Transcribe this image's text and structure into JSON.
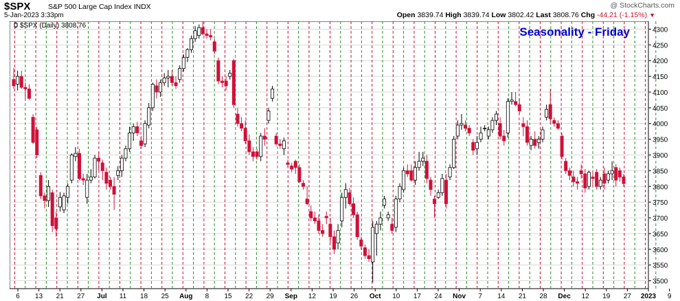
{
  "header": {
    "symbol": "$SPX",
    "description": "S&P 500 Large Cap Index INDX",
    "watermark": "@ StockCharts.com",
    "datetime": "5-Jan-2023 3:33pm",
    "open_label": "Open",
    "open": "3839.74",
    "high_label": "High",
    "high": "3839.74",
    "low_label": "Low",
    "low": "3802.42",
    "last_label": "Last",
    "last": "3808.76",
    "chg_label": "Chg",
    "chg": "-44.21 (-1.15%)",
    "chg_icon": "down-triangle-icon"
  },
  "legend": {
    "text": "$SPX (Daily) 3808.76",
    "icon": "candlestick-icon"
  },
  "colors": {
    "up": "#ffffff",
    "down": "#d0103a",
    "outline": "#000000",
    "friday_line": "#c8102e",
    "week_line": "#2e8b2e",
    "title": "#0000cc"
  },
  "chart_data": {
    "type": "candlestick",
    "title": "Seasonality - Friday",
    "ylim": [
      3475,
      4325
    ],
    "y_ticks": [
      3500,
      3550,
      3600,
      3650,
      3700,
      3750,
      3800,
      3850,
      3900,
      3950,
      4000,
      4050,
      4100,
      4150,
      4200,
      4250,
      4300
    ],
    "y_axis_side": "right",
    "x_labels": [
      {
        "label": "6",
        "bold": false
      },
      {
        "label": "13",
        "bold": false
      },
      {
        "label": "21",
        "bold": false
      },
      {
        "label": "27",
        "bold": false
      },
      {
        "label": "Jul",
        "bold": true
      },
      {
        "label": "11",
        "bold": false
      },
      {
        "label": "18",
        "bold": false
      },
      {
        "label": "25",
        "bold": false
      },
      {
        "label": "Aug",
        "bold": true
      },
      {
        "label": "8",
        "bold": false
      },
      {
        "label": "15",
        "bold": false
      },
      {
        "label": "22",
        "bold": false
      },
      {
        "label": "29",
        "bold": false
      },
      {
        "label": "Sep",
        "bold": true
      },
      {
        "label": "12",
        "bold": false
      },
      {
        "label": "19",
        "bold": false
      },
      {
        "label": "26",
        "bold": false
      },
      {
        "label": "Oct",
        "bold": true
      },
      {
        "label": "10",
        "bold": false
      },
      {
        "label": "17",
        "bold": false
      },
      {
        "label": "24",
        "bold": false
      },
      {
        "label": "Nov",
        "bold": true
      },
      {
        "label": "7",
        "bold": false
      },
      {
        "label": "14",
        "bold": false
      },
      {
        "label": "21",
        "bold": false
      },
      {
        "label": "28",
        "bold": false
      },
      {
        "label": "Dec",
        "bold": true
      },
      {
        "label": "12",
        "bold": false
      },
      {
        "label": "19",
        "bold": false
      },
      {
        "label": "27",
        "bold": false
      },
      {
        "label": "2023",
        "bold": true
      },
      {
        "label": "9",
        "bold": false
      }
    ],
    "grid": true,
    "legend": "top-left",
    "annotations": [
      "Friday (red dashed vertical)",
      "week start (green dashed vertical)"
    ],
    "candles": [
      {
        "o": 4140,
        "h": 4177,
        "l": 4110,
        "c": 4120
      },
      {
        "o": 4125,
        "h": 4168,
        "l": 4105,
        "c": 4150
      },
      {
        "o": 4150,
        "h": 4168,
        "l": 4110,
        "c": 4115
      },
      {
        "o": 4115,
        "h": 4130,
        "l": 4077,
        "c": 4110
      },
      {
        "o": 4110,
        "h": 4125,
        "l": 4075,
        "c": 4080
      },
      {
        "o": 4020,
        "h": 4030,
        "l": 3935,
        "c": 3940
      },
      {
        "o": 3980,
        "h": 3990,
        "l": 3890,
        "c": 3900
      },
      {
        "o": 3835,
        "h": 3845,
        "l": 3760,
        "c": 3770
      },
      {
        "o": 3770,
        "h": 3780,
        "l": 3730,
        "c": 3755
      },
      {
        "o": 3755,
        "h": 3820,
        "l": 3735,
        "c": 3800
      },
      {
        "o": 3780,
        "h": 3790,
        "l": 3655,
        "c": 3675
      },
      {
        "o": 3700,
        "h": 3720,
        "l": 3640,
        "c": 3665
      },
      {
        "o": 3735,
        "h": 3782,
        "l": 3720,
        "c": 3765
      },
      {
        "o": 3725,
        "h": 3780,
        "l": 3715,
        "c": 3770
      },
      {
        "o": 3765,
        "h": 3810,
        "l": 3745,
        "c": 3800
      },
      {
        "o": 3820,
        "h": 3905,
        "l": 3810,
        "c": 3900
      },
      {
        "o": 3895,
        "h": 3925,
        "l": 3880,
        "c": 3905
      },
      {
        "o": 3905,
        "h": 3920,
        "l": 3820,
        "c": 3825
      },
      {
        "o": 3825,
        "h": 3840,
        "l": 3805,
        "c": 3820
      },
      {
        "o": 3765,
        "h": 3840,
        "l": 3745,
        "c": 3820
      },
      {
        "o": 3820,
        "h": 3855,
        "l": 3810,
        "c": 3830
      },
      {
        "o": 3830,
        "h": 3900,
        "l": 3825,
        "c": 3890
      },
      {
        "o": 3890,
        "h": 3910,
        "l": 3850,
        "c": 3880
      },
      {
        "o": 3875,
        "h": 3885,
        "l": 3820,
        "c": 3850
      },
      {
        "o": 3845,
        "h": 3860,
        "l": 3790,
        "c": 3810
      },
      {
        "o": 3820,
        "h": 3830,
        "l": 3790,
        "c": 3800
      },
      {
        "o": 3800,
        "h": 3830,
        "l": 3725,
        "c": 3775
      },
      {
        "o": 3835,
        "h": 3865,
        "l": 3820,
        "c": 3850
      },
      {
        "o": 3850,
        "h": 3900,
        "l": 3830,
        "c": 3890
      },
      {
        "o": 3890,
        "h": 3930,
        "l": 3880,
        "c": 3920
      },
      {
        "o": 3920,
        "h": 3990,
        "l": 3910,
        "c": 3970
      },
      {
        "o": 3970,
        "h": 4000,
        "l": 3945,
        "c": 3990
      },
      {
        "o": 3990,
        "h": 4005,
        "l": 3960,
        "c": 3970
      },
      {
        "o": 3945,
        "h": 3960,
        "l": 3920,
        "c": 3930
      },
      {
        "o": 3935,
        "h": 4010,
        "l": 3925,
        "c": 4000
      },
      {
        "o": 3995,
        "h": 4065,
        "l": 3985,
        "c": 4050
      },
      {
        "o": 4050,
        "h": 4130,
        "l": 4040,
        "c": 4125
      },
      {
        "o": 4120,
        "h": 4140,
        "l": 4080,
        "c": 4100
      },
      {
        "o": 4100,
        "h": 4140,
        "l": 4085,
        "c": 4130
      },
      {
        "o": 4130,
        "h": 4160,
        "l": 4120,
        "c": 4145
      },
      {
        "o": 4145,
        "h": 4170,
        "l": 4115,
        "c": 4150
      },
      {
        "o": 4150,
        "h": 4170,
        "l": 4120,
        "c": 4130
      },
      {
        "o": 4130,
        "h": 4150,
        "l": 4110,
        "c": 4120
      },
      {
        "o": 4140,
        "h": 4185,
        "l": 4130,
        "c": 4175
      },
      {
        "o": 4175,
        "h": 4220,
        "l": 4165,
        "c": 4210
      },
      {
        "o": 4210,
        "h": 4240,
        "l": 4195,
        "c": 4235
      },
      {
        "o": 4235,
        "h": 4280,
        "l": 4225,
        "c": 4270
      },
      {
        "o": 4270,
        "h": 4310,
        "l": 4260,
        "c": 4295
      },
      {
        "o": 4280,
        "h": 4315,
        "l": 4270,
        "c": 4305
      },
      {
        "o": 4305,
        "h": 4325,
        "l": 4280,
        "c": 4285
      },
      {
        "o": 4285,
        "h": 4300,
        "l": 4270,
        "c": 4280
      },
      {
        "o": 4280,
        "h": 4300,
        "l": 4265,
        "c": 4275
      },
      {
        "o": 4260,
        "h": 4270,
        "l": 4220,
        "c": 4230
      },
      {
        "o": 4200,
        "h": 4210,
        "l": 4125,
        "c": 4135
      },
      {
        "o": 4135,
        "h": 4150,
        "l": 4115,
        "c": 4130
      },
      {
        "o": 4135,
        "h": 4150,
        "l": 4105,
        "c": 4120
      },
      {
        "o": 4150,
        "h": 4170,
        "l": 4140,
        "c": 4160
      },
      {
        "o": 4200,
        "h": 4205,
        "l": 4050,
        "c": 4060
      },
      {
        "o": 4030,
        "h": 4050,
        "l": 3990,
        "c": 4000
      },
      {
        "o": 4000,
        "h": 4020,
        "l": 3975,
        "c": 3985
      },
      {
        "o": 3985,
        "h": 4010,
        "l": 3935,
        "c": 3945
      },
      {
        "o": 3945,
        "h": 3965,
        "l": 3900,
        "c": 3910
      },
      {
        "o": 3910,
        "h": 3925,
        "l": 3880,
        "c": 3895
      },
      {
        "o": 3910,
        "h": 3920,
        "l": 3885,
        "c": 3895
      },
      {
        "o": 3895,
        "h": 3970,
        "l": 3880,
        "c": 3960
      },
      {
        "o": 3960,
        "h": 3985,
        "l": 3930,
        "c": 3950
      },
      {
        "o": 4010,
        "h": 4050,
        "l": 4000,
        "c": 4040
      },
      {
        "o": 4080,
        "h": 4120,
        "l": 4070,
        "c": 4110
      },
      {
        "o": 3960,
        "h": 3970,
        "l": 3930,
        "c": 3935
      },
      {
        "o": 3935,
        "h": 3950,
        "l": 3920,
        "c": 3930
      },
      {
        "o": 3920,
        "h": 3955,
        "l": 3900,
        "c": 3945
      },
      {
        "o": 3875,
        "h": 3885,
        "l": 3860,
        "c": 3870
      },
      {
        "o": 3865,
        "h": 3875,
        "l": 3845,
        "c": 3855
      },
      {
        "o": 3880,
        "h": 3885,
        "l": 3840,
        "c": 3860
      },
      {
        "o": 3860,
        "h": 3870,
        "l": 3810,
        "c": 3815
      },
      {
        "o": 3810,
        "h": 3820,
        "l": 3790,
        "c": 3800
      },
      {
        "o": 3760,
        "h": 3800,
        "l": 3740,
        "c": 3745
      },
      {
        "o": 3720,
        "h": 3740,
        "l": 3690,
        "c": 3700
      },
      {
        "o": 3700,
        "h": 3720,
        "l": 3680,
        "c": 3690
      },
      {
        "o": 3690,
        "h": 3710,
        "l": 3650,
        "c": 3660
      },
      {
        "o": 3660,
        "h": 3680,
        "l": 3640,
        "c": 3650
      },
      {
        "o": 3705,
        "h": 3720,
        "l": 3680,
        "c": 3700
      },
      {
        "o": 3680,
        "h": 3700,
        "l": 3620,
        "c": 3640
      },
      {
        "o": 3640,
        "h": 3660,
        "l": 3585,
        "c": 3600
      },
      {
        "o": 3620,
        "h": 3680,
        "l": 3600,
        "c": 3660
      },
      {
        "o": 3690,
        "h": 3780,
        "l": 3670,
        "c": 3765
      },
      {
        "o": 3765,
        "h": 3810,
        "l": 3730,
        "c": 3790
      },
      {
        "o": 3780,
        "h": 3795,
        "l": 3740,
        "c": 3745
      },
      {
        "o": 3745,
        "h": 3765,
        "l": 3700,
        "c": 3710
      },
      {
        "o": 3710,
        "h": 3720,
        "l": 3630,
        "c": 3640
      },
      {
        "o": 3630,
        "h": 3640,
        "l": 3600,
        "c": 3610
      },
      {
        "o": 3605,
        "h": 3615,
        "l": 3570,
        "c": 3580
      },
      {
        "o": 3580,
        "h": 3600,
        "l": 3560,
        "c": 3570
      },
      {
        "o": 3560,
        "h": 3690,
        "l": 3495,
        "c": 3670
      },
      {
        "o": 3650,
        "h": 3690,
        "l": 3580,
        "c": 3680
      },
      {
        "o": 3680,
        "h": 3720,
        "l": 3660,
        "c": 3700
      },
      {
        "o": 3740,
        "h": 3770,
        "l": 3730,
        "c": 3760
      },
      {
        "o": 3700,
        "h": 3720,
        "l": 3690,
        "c": 3710
      },
      {
        "o": 3680,
        "h": 3700,
        "l": 3650,
        "c": 3660
      },
      {
        "o": 3670,
        "h": 3770,
        "l": 3655,
        "c": 3760
      },
      {
        "o": 3760,
        "h": 3810,
        "l": 3750,
        "c": 3800
      },
      {
        "o": 3790,
        "h": 3860,
        "l": 3780,
        "c": 3850
      },
      {
        "o": 3850,
        "h": 3870,
        "l": 3830,
        "c": 3840
      },
      {
        "o": 3850,
        "h": 3870,
        "l": 3815,
        "c": 3820
      },
      {
        "o": 3820,
        "h": 3880,
        "l": 3805,
        "c": 3860
      },
      {
        "o": 3860,
        "h": 3910,
        "l": 3850,
        "c": 3880
      },
      {
        "o": 3880,
        "h": 3910,
        "l": 3865,
        "c": 3890
      },
      {
        "o": 3880,
        "h": 3900,
        "l": 3810,
        "c": 3825
      },
      {
        "o": 3820,
        "h": 3830,
        "l": 3770,
        "c": 3790
      },
      {
        "o": 3760,
        "h": 3770,
        "l": 3700,
        "c": 3745
      },
      {
        "o": 3765,
        "h": 3790,
        "l": 3760,
        "c": 3780
      },
      {
        "o": 3780,
        "h": 3840,
        "l": 3770,
        "c": 3825
      },
      {
        "o": 3820,
        "h": 3840,
        "l": 3730,
        "c": 3745
      },
      {
        "o": 3830,
        "h": 3870,
        "l": 3820,
        "c": 3860
      },
      {
        "o": 3860,
        "h": 3960,
        "l": 3855,
        "c": 3950
      },
      {
        "o": 3960,
        "h": 4010,
        "l": 3950,
        "c": 3995
      },
      {
        "o": 3995,
        "h": 4030,
        "l": 3980,
        "c": 4000
      },
      {
        "o": 3995,
        "h": 4010,
        "l": 3975,
        "c": 3985
      },
      {
        "o": 3985,
        "h": 3995,
        "l": 3960,
        "c": 3970
      },
      {
        "o": 3940,
        "h": 3950,
        "l": 3900,
        "c": 3915
      },
      {
        "o": 3920,
        "h": 3960,
        "l": 3900,
        "c": 3940
      },
      {
        "o": 3950,
        "h": 3990,
        "l": 3940,
        "c": 3970
      },
      {
        "o": 3985,
        "h": 3995,
        "l": 3975,
        "c": 3985
      },
      {
        "o": 3960,
        "h": 3990,
        "l": 3950,
        "c": 3980
      },
      {
        "o": 3980,
        "h": 4020,
        "l": 3970,
        "c": 4010
      },
      {
        "o": 4010,
        "h": 4040,
        "l": 3995,
        "c": 4030
      },
      {
        "o": 4000,
        "h": 4020,
        "l": 3950,
        "c": 3960
      },
      {
        "o": 3960,
        "h": 3980,
        "l": 3930,
        "c": 3945
      },
      {
        "o": 3970,
        "h": 4080,
        "l": 3955,
        "c": 4070
      },
      {
        "o": 4070,
        "h": 4100,
        "l": 4060,
        "c": 4075
      },
      {
        "o": 4070,
        "h": 4100,
        "l": 4055,
        "c": 4060
      },
      {
        "o": 4060,
        "h": 4080,
        "l": 4030,
        "c": 4040
      },
      {
        "o": 4000,
        "h": 4020,
        "l": 3960,
        "c": 3990
      },
      {
        "o": 3990,
        "h": 4010,
        "l": 3930,
        "c": 3940
      },
      {
        "o": 3930,
        "h": 3960,
        "l": 3915,
        "c": 3950
      },
      {
        "o": 3950,
        "h": 3975,
        "l": 3920,
        "c": 3930
      },
      {
        "o": 3940,
        "h": 3960,
        "l": 3920,
        "c": 3950
      },
      {
        "o": 3950,
        "h": 3990,
        "l": 3940,
        "c": 3980
      },
      {
        "o": 4020,
        "h": 4060,
        "l": 4010,
        "c": 4045
      },
      {
        "o": 4060,
        "h": 4110,
        "l": 4000,
        "c": 4015
      },
      {
        "o": 4010,
        "h": 4020,
        "l": 3990,
        "c": 4000
      },
      {
        "o": 4000,
        "h": 4010,
        "l": 3980,
        "c": 3985
      },
      {
        "o": 3960,
        "h": 3970,
        "l": 3885,
        "c": 3895
      },
      {
        "o": 3880,
        "h": 3890,
        "l": 3840,
        "c": 3850
      },
      {
        "o": 3850,
        "h": 3860,
        "l": 3820,
        "c": 3835
      },
      {
        "o": 3830,
        "h": 3850,
        "l": 3800,
        "c": 3815
      },
      {
        "o": 3815,
        "h": 3830,
        "l": 3790,
        "c": 3810
      },
      {
        "o": 3850,
        "h": 3870,
        "l": 3825,
        "c": 3840
      },
      {
        "o": 3840,
        "h": 3855,
        "l": 3780,
        "c": 3795
      },
      {
        "o": 3800,
        "h": 3850,
        "l": 3790,
        "c": 3845
      },
      {
        "o": 3830,
        "h": 3850,
        "l": 3800,
        "c": 3825
      },
      {
        "o": 3845,
        "h": 3855,
        "l": 3790,
        "c": 3800
      },
      {
        "o": 3800,
        "h": 3830,
        "l": 3790,
        "c": 3820
      },
      {
        "o": 3840,
        "h": 3860,
        "l": 3790,
        "c": 3810
      },
      {
        "o": 3820,
        "h": 3850,
        "l": 3810,
        "c": 3840
      },
      {
        "o": 3840,
        "h": 3880,
        "l": 3820,
        "c": 3850
      },
      {
        "o": 3860,
        "h": 3870,
        "l": 3800,
        "c": 3820
      },
      {
        "o": 3850,
        "h": 3860,
        "l": 3815,
        "c": 3830
      },
      {
        "o": 3830,
        "h": 3840,
        "l": 3800,
        "c": 3809
      }
    ]
  }
}
